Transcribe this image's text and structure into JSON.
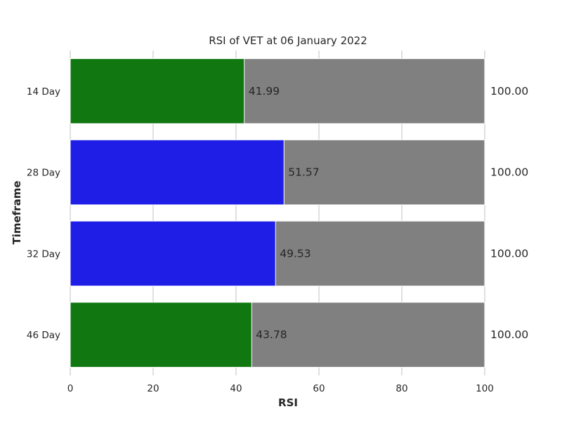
{
  "chart_data": {
    "type": "bar",
    "orientation": "horizontal",
    "stacked": "overlay",
    "title": "RSI of VET at 06 January 2022",
    "xlabel": "RSI",
    "ylabel": "Timeframe",
    "xlim": [
      0,
      100
    ],
    "xticks": [
      0,
      20,
      40,
      60,
      80,
      100
    ],
    "grid": "vertical",
    "categories": [
      "14 Day",
      "28 Day",
      "32 Day",
      "46 Day"
    ],
    "series": [
      {
        "values": [
          100,
          100,
          100,
          100
        ],
        "labels": [
          "100.00",
          "100.00",
          "100.00",
          "100.00"
        ],
        "color": "#808080"
      },
      {
        "values": [
          41.99,
          51.57,
          49.53,
          43.78
        ],
        "labels": [
          "41.99",
          "51.57",
          "49.53",
          "43.78"
        ],
        "colors": [
          "#117711",
          "#1e1ee6",
          "#1e1ee6",
          "#117711"
        ]
      }
    ]
  }
}
